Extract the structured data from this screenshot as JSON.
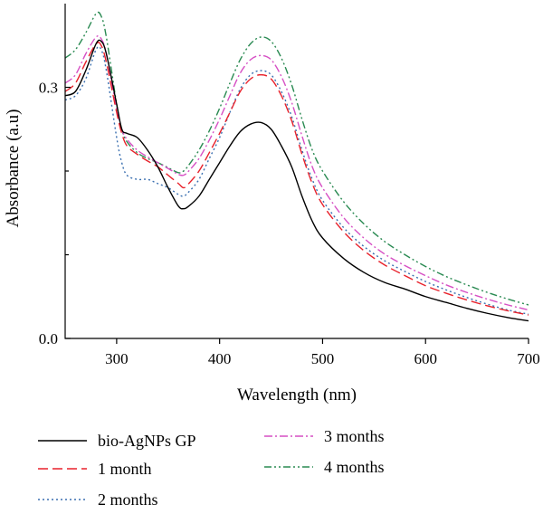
{
  "chart_data": {
    "type": "line",
    "xlabel": "Wavelength (nm)",
    "ylabel": "Absorbance (a.u)",
    "xlim": [
      250,
      700
    ],
    "ylim": [
      0,
      0.4
    ],
    "x_ticks": [
      {
        "value": 300,
        "label": "300"
      },
      {
        "value": 400,
        "label": "400"
      },
      {
        "value": 500,
        "label": "500"
      },
      {
        "value": 600,
        "label": "600"
      },
      {
        "value": 700,
        "label": "700"
      }
    ],
    "y_ticks": [
      {
        "value": 0.0,
        "label": "0.0"
      },
      {
        "value": 0.3,
        "label": "0.3"
      }
    ],
    "y_minor_ticks": [
      0.1,
      0.2
    ],
    "grid": false,
    "legend_placement": "bottom",
    "series": [
      {
        "name": "bio-AgNPs GP",
        "color": "#000000",
        "dash": "solid",
        "x": [
          250,
          260,
          270,
          280,
          285,
          290,
          300,
          305,
          310,
          320,
          330,
          340,
          350,
          360,
          365,
          370,
          380,
          390,
          400,
          410,
          420,
          430,
          440,
          450,
          460,
          470,
          480,
          490,
          500,
          520,
          540,
          560,
          580,
          600,
          620,
          640,
          660,
          680,
          700
        ],
        "y": [
          0.29,
          0.295,
          0.32,
          0.352,
          0.355,
          0.34,
          0.28,
          0.25,
          0.245,
          0.24,
          0.225,
          0.205,
          0.18,
          0.158,
          0.155,
          0.158,
          0.17,
          0.19,
          0.21,
          0.23,
          0.247,
          0.256,
          0.258,
          0.25,
          0.23,
          0.205,
          0.17,
          0.14,
          0.12,
          0.096,
          0.079,
          0.067,
          0.059,
          0.05,
          0.043,
          0.036,
          0.03,
          0.025,
          0.021
        ]
      },
      {
        "name": "1 month",
        "color": "#e8212b",
        "dash": "long",
        "x": [
          250,
          260,
          270,
          280,
          285,
          290,
          300,
          305,
          310,
          320,
          330,
          340,
          350,
          360,
          365,
          370,
          380,
          390,
          400,
          410,
          420,
          430,
          440,
          450,
          460,
          470,
          480,
          490,
          500,
          520,
          540,
          560,
          580,
          600,
          620,
          640,
          660,
          680,
          700
        ],
        "y": [
          0.295,
          0.305,
          0.33,
          0.352,
          0.35,
          0.33,
          0.27,
          0.245,
          0.23,
          0.22,
          0.212,
          0.205,
          0.195,
          0.185,
          0.18,
          0.185,
          0.2,
          0.222,
          0.245,
          0.27,
          0.295,
          0.31,
          0.315,
          0.31,
          0.29,
          0.26,
          0.22,
          0.185,
          0.16,
          0.128,
          0.105,
          0.088,
          0.075,
          0.063,
          0.054,
          0.046,
          0.039,
          0.033,
          0.028
        ]
      },
      {
        "name": "2 months",
        "color": "#3a6fb0",
        "dash": "dot",
        "x": [
          250,
          260,
          270,
          280,
          285,
          290,
          300,
          305,
          310,
          320,
          330,
          340,
          350,
          360,
          365,
          370,
          380,
          390,
          400,
          410,
          420,
          430,
          440,
          450,
          460,
          470,
          480,
          490,
          500,
          520,
          540,
          560,
          580,
          600,
          620,
          640,
          660,
          680,
          700
        ],
        "y": [
          0.285,
          0.29,
          0.31,
          0.345,
          0.345,
          0.32,
          0.24,
          0.21,
          0.195,
          0.19,
          0.19,
          0.185,
          0.18,
          0.172,
          0.17,
          0.175,
          0.19,
          0.215,
          0.24,
          0.27,
          0.298,
          0.315,
          0.32,
          0.315,
          0.295,
          0.265,
          0.225,
          0.19,
          0.165,
          0.133,
          0.11,
          0.093,
          0.08,
          0.068,
          0.058,
          0.049,
          0.041,
          0.034,
          0.029
        ]
      },
      {
        "name": "3 months",
        "color": "#d64fc4",
        "dash": "dashdot",
        "x": [
          250,
          260,
          270,
          280,
          285,
          290,
          300,
          305,
          310,
          320,
          330,
          340,
          350,
          360,
          365,
          370,
          380,
          390,
          400,
          410,
          420,
          430,
          440,
          450,
          460,
          470,
          480,
          490,
          500,
          520,
          540,
          560,
          580,
          600,
          620,
          640,
          660,
          680,
          700
        ],
        "y": [
          0.305,
          0.315,
          0.34,
          0.36,
          0.358,
          0.34,
          0.275,
          0.25,
          0.238,
          0.225,
          0.217,
          0.21,
          0.203,
          0.196,
          0.195,
          0.2,
          0.215,
          0.237,
          0.262,
          0.29,
          0.317,
          0.333,
          0.338,
          0.333,
          0.313,
          0.282,
          0.242,
          0.205,
          0.18,
          0.145,
          0.12,
          0.101,
          0.087,
          0.075,
          0.064,
          0.055,
          0.047,
          0.04,
          0.034
        ]
      },
      {
        "name": "4 months",
        "color": "#2a8a52",
        "dash": "dashdotdot",
        "x": [
          250,
          260,
          270,
          280,
          285,
          290,
          300,
          305,
          310,
          320,
          330,
          340,
          350,
          360,
          365,
          370,
          380,
          390,
          400,
          410,
          420,
          430,
          440,
          450,
          460,
          470,
          480,
          490,
          500,
          520,
          540,
          560,
          580,
          600,
          620,
          640,
          660,
          680,
          700
        ],
        "y": [
          0.335,
          0.345,
          0.365,
          0.388,
          0.385,
          0.36,
          0.28,
          0.25,
          0.235,
          0.222,
          0.215,
          0.21,
          0.204,
          0.198,
          0.2,
          0.207,
          0.225,
          0.248,
          0.275,
          0.305,
          0.333,
          0.352,
          0.36,
          0.355,
          0.335,
          0.303,
          0.262,
          0.225,
          0.2,
          0.164,
          0.137,
          0.116,
          0.1,
          0.086,
          0.074,
          0.064,
          0.055,
          0.047,
          0.04
        ]
      }
    ]
  }
}
